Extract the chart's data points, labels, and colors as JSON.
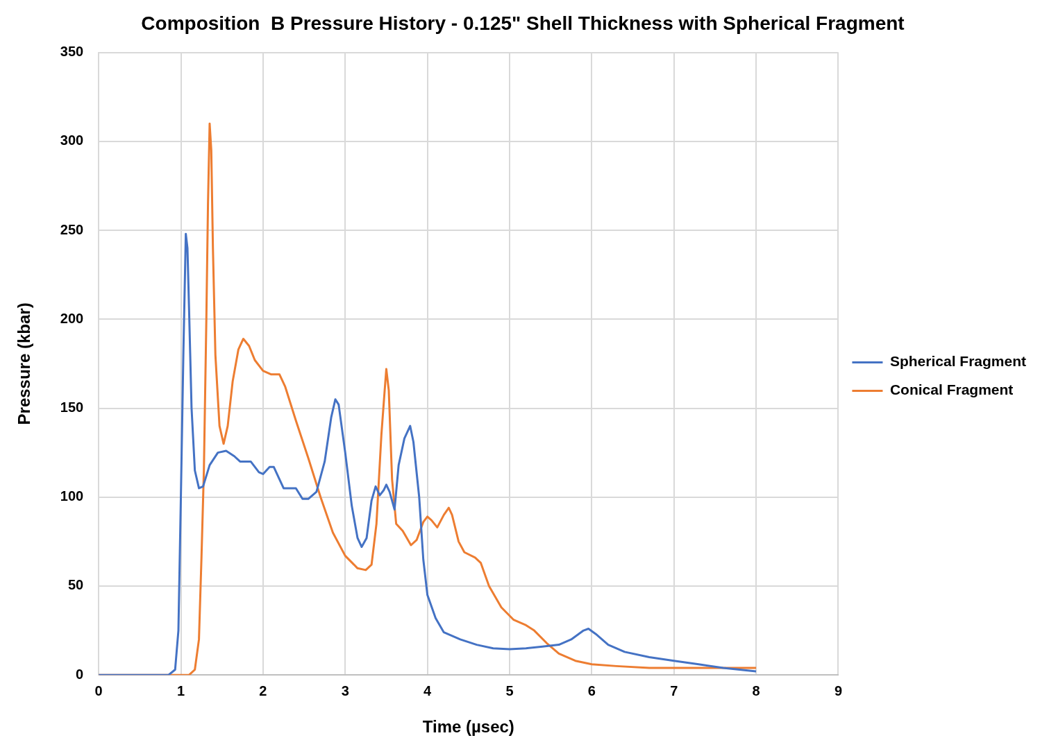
{
  "chart_data": {
    "type": "line",
    "title": "Composition  B Pressure History - 0.125\" Shell Thickness with Spherical Fragment",
    "xlabel": "Time (µsec)",
    "ylabel": "Pressure (kbar)",
    "xlim": [
      0,
      9
    ],
    "xticks": [
      0,
      1,
      2,
      3,
      4,
      5,
      6,
      7,
      8,
      9
    ],
    "ylim": [
      0,
      350
    ],
    "yticks": [
      0,
      50,
      100,
      150,
      200,
      250,
      300,
      350
    ],
    "grid": true,
    "legend": "right",
    "marker": "none",
    "line_style": "solid",
    "series": [
      {
        "name": "Spherical Fragment",
        "color": "#4472c4",
        "x": [
          0,
          0.85,
          0.93,
          0.97,
          1.0,
          1.03,
          1.06,
          1.08,
          1.1,
          1.13,
          1.17,
          1.22,
          1.27,
          1.35,
          1.45,
          1.55,
          1.65,
          1.72,
          1.85,
          1.95,
          2.0,
          2.08,
          2.13,
          2.2,
          2.25,
          2.4,
          2.48,
          2.55,
          2.65,
          2.75,
          2.83,
          2.88,
          2.92,
          3.0,
          3.08,
          3.15,
          3.2,
          3.26,
          3.32,
          3.37,
          3.42,
          3.47,
          3.5,
          3.54,
          3.6,
          3.65,
          3.72,
          3.79,
          3.83,
          3.9,
          3.95,
          4.0,
          4.1,
          4.2,
          4.4,
          4.6,
          4.8,
          5.0,
          5.2,
          5.4,
          5.6,
          5.75,
          5.9,
          5.96,
          6.05,
          6.2,
          6.4,
          6.7,
          7.0,
          7.3,
          7.6,
          8.0
        ],
        "values": [
          0,
          0,
          3,
          25,
          100,
          180,
          248,
          240,
          205,
          150,
          115,
          105,
          106,
          118,
          125,
          126,
          123,
          120,
          120,
          114,
          113,
          117,
          117,
          110,
          105,
          105,
          99,
          99,
          103,
          120,
          145,
          155,
          152,
          125,
          95,
          77,
          72,
          77,
          98,
          106,
          101,
          104,
          107,
          103,
          93,
          118,
          133,
          140,
          131,
          100,
          65,
          45,
          32,
          24,
          20,
          17,
          15,
          14.5,
          15,
          16,
          17,
          20,
          25,
          26,
          23,
          17,
          13,
          10,
          8,
          6,
          4,
          2
        ]
      },
      {
        "name": "Conical Fragment",
        "color": "#ed7d31",
        "x": [
          0,
          1.1,
          1.17,
          1.22,
          1.25,
          1.28,
          1.31,
          1.33,
          1.35,
          1.37,
          1.39,
          1.42,
          1.47,
          1.52,
          1.57,
          1.63,
          1.7,
          1.76,
          1.83,
          1.9,
          2.0,
          2.1,
          2.2,
          2.27,
          2.4,
          2.55,
          2.7,
          2.85,
          3.0,
          3.15,
          3.25,
          3.32,
          3.38,
          3.44,
          3.48,
          3.5,
          3.53,
          3.57,
          3.62,
          3.7,
          3.8,
          3.87,
          3.95,
          4.0,
          4.05,
          4.12,
          4.2,
          4.26,
          4.3,
          4.38,
          4.45,
          4.58,
          4.65,
          4.75,
          4.9,
          5.05,
          5.2,
          5.3,
          5.45,
          5.6,
          5.8,
          6.0,
          6.3,
          6.7,
          7.3,
          8.0
        ],
        "values": [
          0,
          0,
          3,
          20,
          65,
          115,
          200,
          265,
          310,
          295,
          240,
          180,
          140,
          130,
          140,
          165,
          183,
          189,
          185,
          177,
          171,
          169,
          169,
          162,
          143,
          122,
          100,
          80,
          67,
          60,
          59,
          62,
          85,
          135,
          160,
          172,
          160,
          110,
          85,
          81,
          73,
          76,
          86,
          89,
          87,
          83,
          90,
          94,
          90,
          75,
          69,
          66,
          63,
          50,
          38,
          31,
          28,
          25,
          18,
          12,
          8,
          6,
          5,
          4,
          4,
          4
        ]
      }
    ]
  }
}
